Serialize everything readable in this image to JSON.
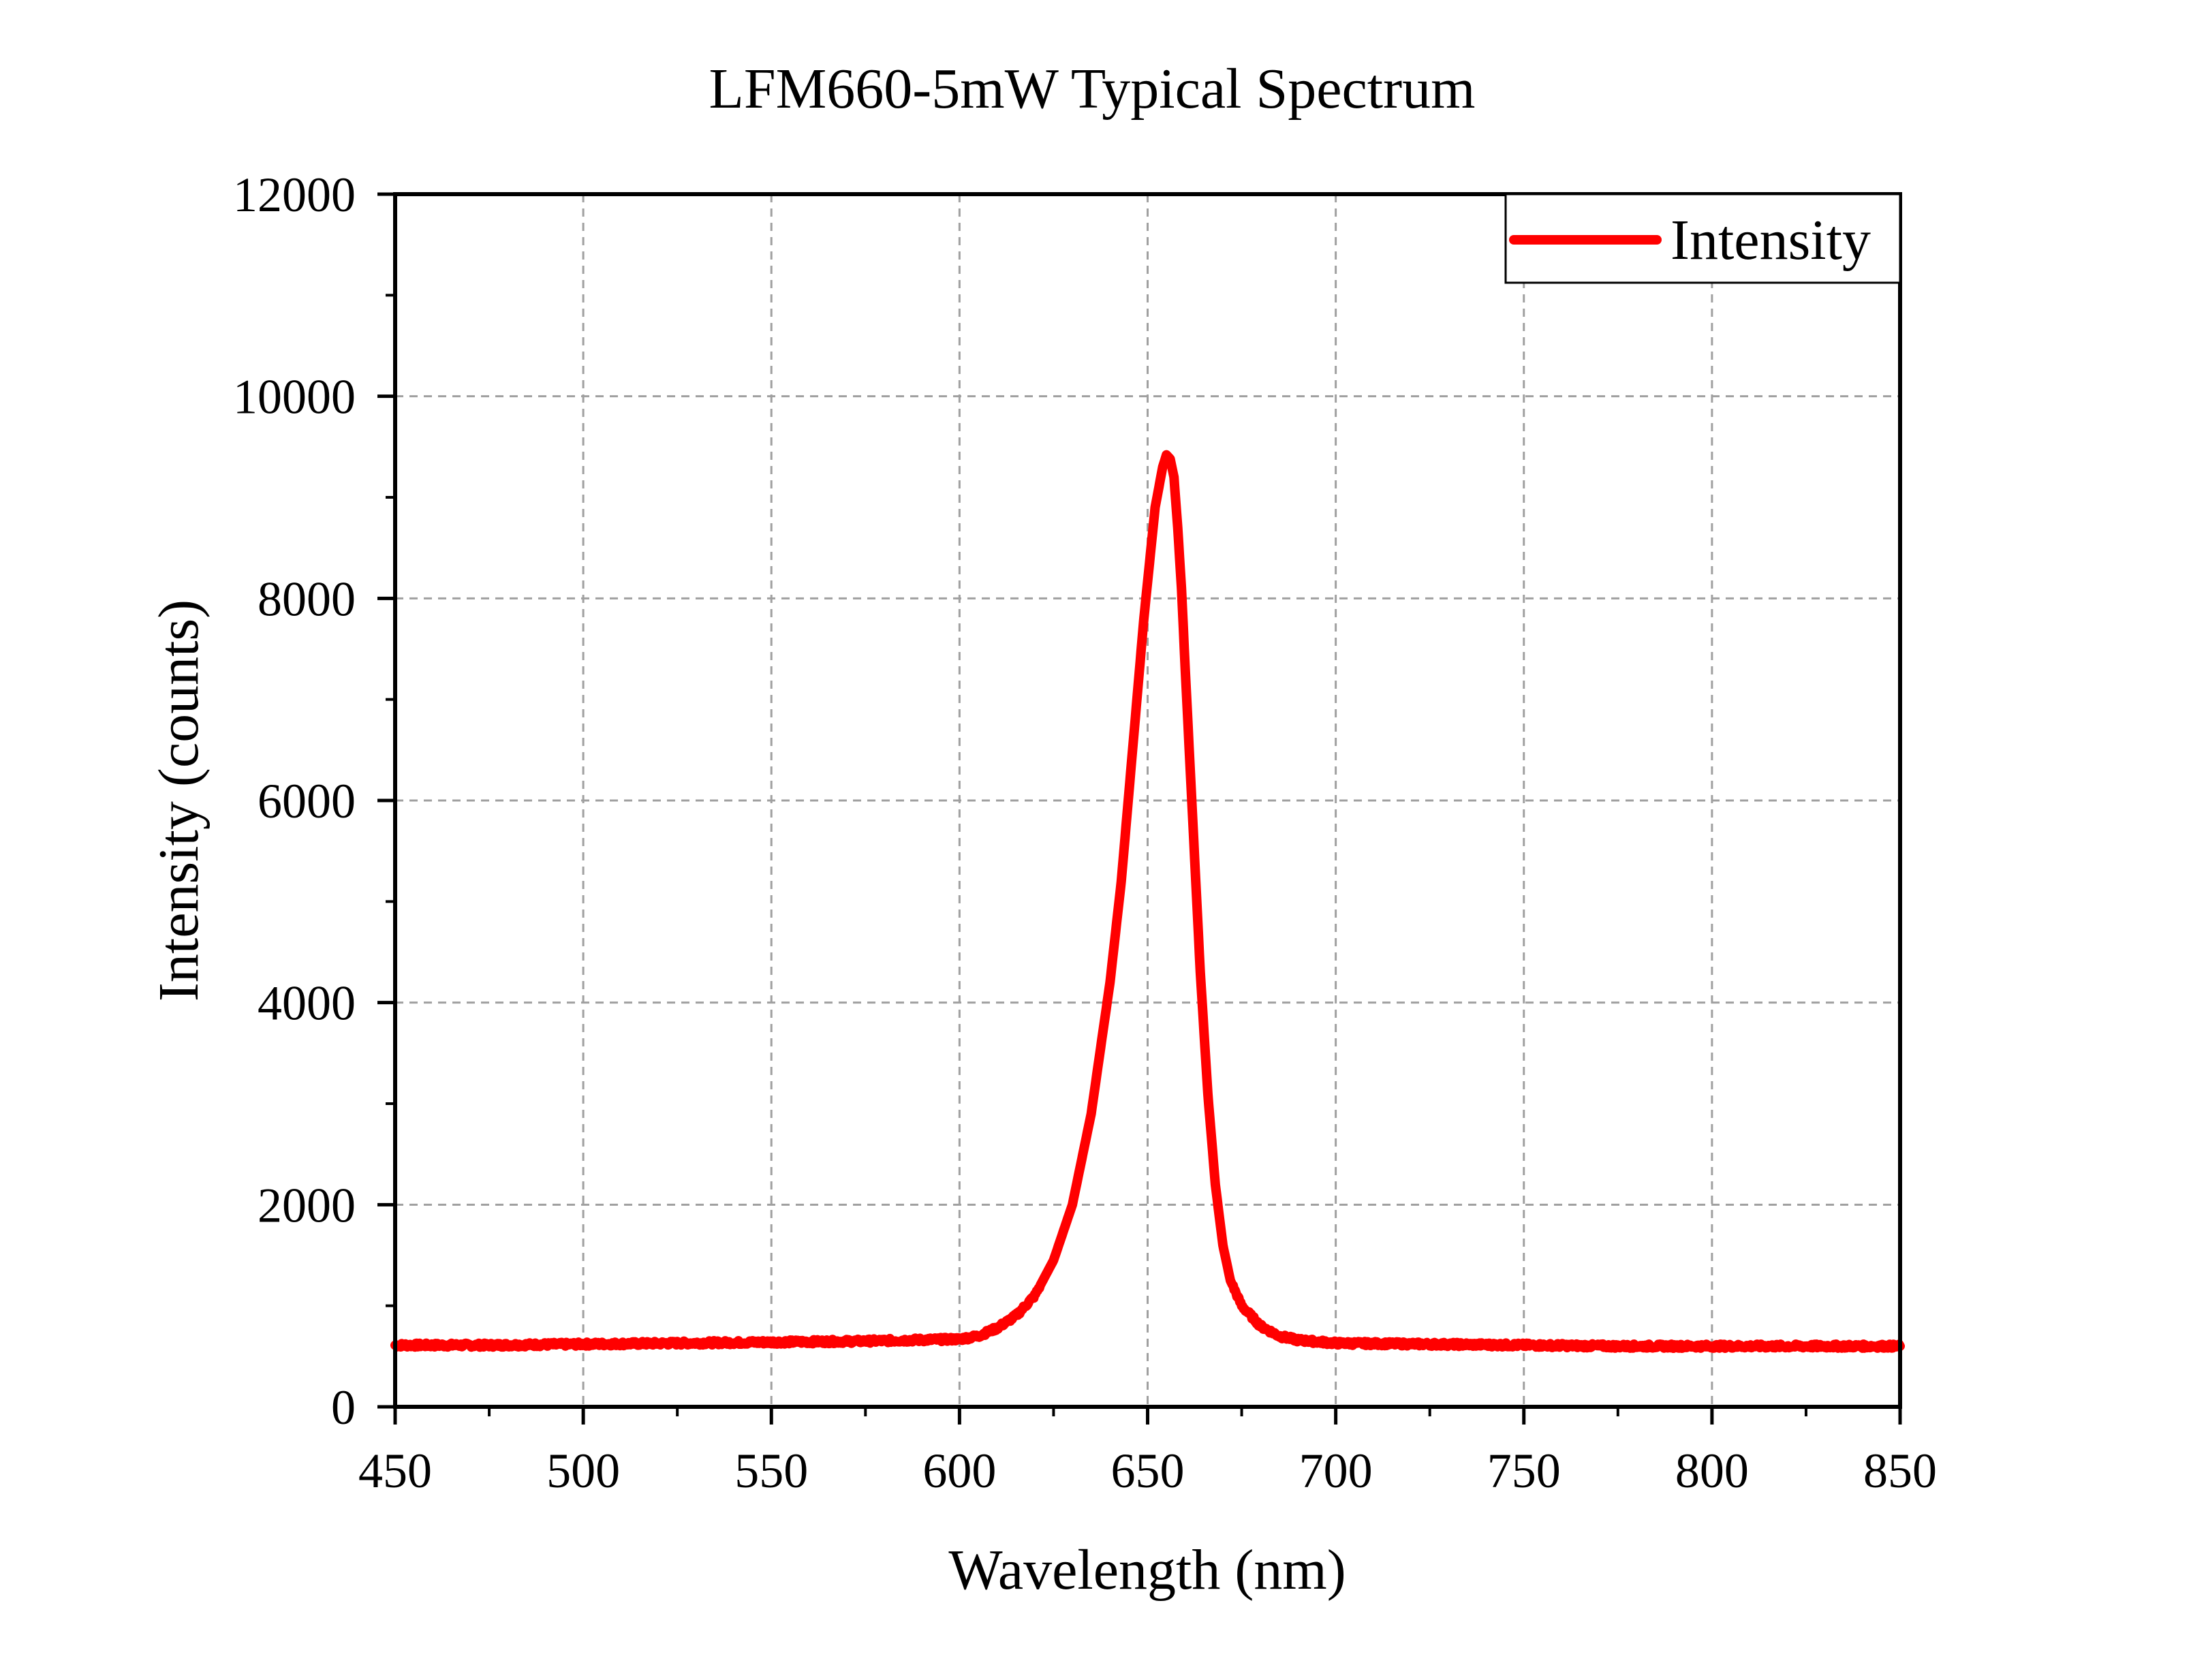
{
  "chart_data": {
    "type": "line",
    "title": "LFM660-5mW Typical Spectrum",
    "xlabel": "Wavelength (nm)",
    "ylabel": "Intensity (counts)",
    "xlim": [
      450,
      850
    ],
    "ylim": [
      0,
      12000
    ],
    "x_ticks": [
      450,
      500,
      550,
      600,
      650,
      700,
      750,
      800,
      850
    ],
    "y_ticks": [
      0,
      2000,
      4000,
      6000,
      8000,
      10000,
      12000
    ],
    "grid": true,
    "legend_position": "top-right",
    "series": [
      {
        "name": "Intensity",
        "color": "#ff0000",
        "x": [
          450,
          475,
          500,
          525,
          550,
          575,
          600,
          605,
          610,
          615,
          620,
          625,
          630,
          635,
          640,
          643,
          646,
          649,
          652,
          654,
          655,
          656,
          657,
          658,
          659,
          660,
          662,
          664,
          666,
          668,
          670,
          672,
          675,
          680,
          685,
          690,
          700,
          725,
          750,
          775,
          800,
          825,
          850
        ],
        "y": [
          610,
          610,
          620,
          630,
          640,
          650,
          670,
          700,
          780,
          900,
          1100,
          1450,
          2000,
          2900,
          4200,
          5200,
          6500,
          7800,
          8900,
          9300,
          9420,
          9380,
          9200,
          8700,
          8100,
          7300,
          5800,
          4300,
          3100,
          2200,
          1600,
          1250,
          1000,
          800,
          700,
          660,
          630,
          620,
          610,
          600,
          600,
          600,
          600
        ]
      }
    ]
  },
  "icons": {
    "legend_swatch": "red-line-swatch"
  }
}
